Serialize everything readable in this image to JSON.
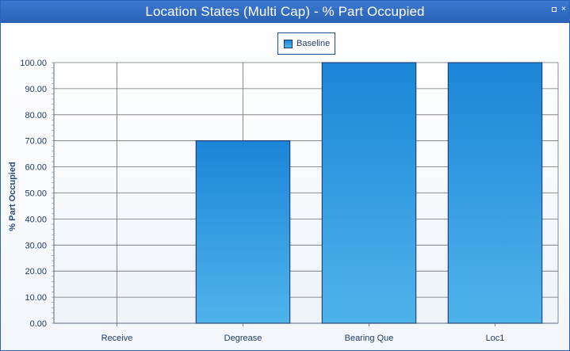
{
  "window": {
    "title": "Location States (Multi Cap) - % Part Occupied",
    "close_glyph": "×"
  },
  "colors": {
    "titlebar": "#2f6cc4",
    "bar_top": "#1b86d8",
    "bar_bottom": "#4fb3ea",
    "bar_outline": "#1a2f66"
  },
  "chart_data": {
    "type": "bar",
    "title": "Location States (Multi Cap) - % Part Occupied",
    "categories": [
      "Receive",
      "Degrease",
      "Bearing Que",
      "Loc1"
    ],
    "series": [
      {
        "name": "Baseline",
        "values": [
          0,
          70,
          100,
          100
        ]
      }
    ],
    "xlabel": "",
    "ylabel": "% Part Occupied",
    "ylim": [
      0,
      100
    ],
    "yticks": [
      "0.00",
      "10.00",
      "20.00",
      "30.00",
      "40.00",
      "50.00",
      "60.00",
      "70.00",
      "80.00",
      "90.00",
      "100.00"
    ],
    "grid": true,
    "legend": "top-center"
  }
}
